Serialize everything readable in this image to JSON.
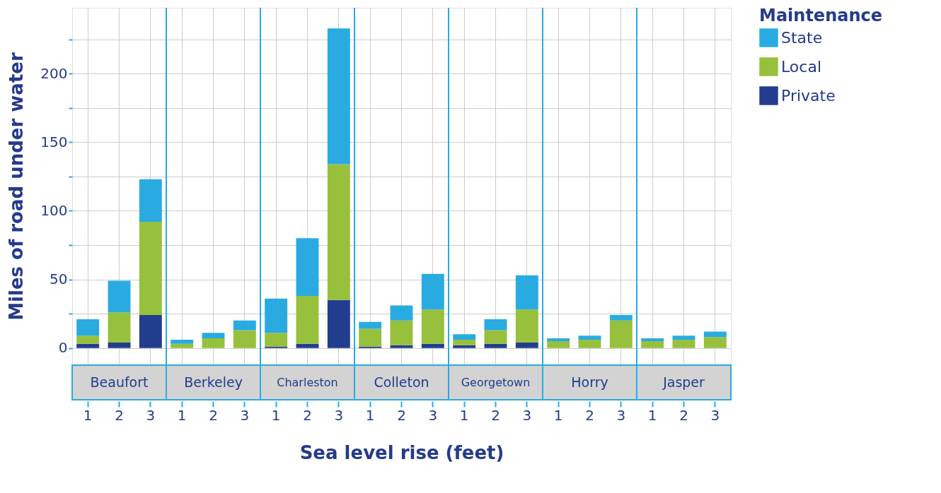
{
  "chart_data": {
    "type": "bar",
    "xlabel": "Sea level rise (feet)",
    "ylabel": "Miles of road under water",
    "legend_title": "Maintenance",
    "legend": "right",
    "annotations": [
      "Beaufort",
      "Berkeley",
      "Charleston",
      "Colleton",
      "Georgetown",
      "Horry",
      "Jasper"
    ],
    "categories": [
      "1",
      "2",
      "3",
      "1",
      "2",
      "3",
      "1",
      "2",
      "3",
      "1",
      "2",
      "3",
      "1",
      "2",
      "3",
      "1",
      "2",
      "3",
      "1",
      "2",
      "3"
    ],
    "stacked": true,
    "grid": true,
    "ylim": [
      -12,
      248
    ],
    "yticks": [
      0,
      {
        "value": 25,
        "label": null
      },
      50,
      {
        "value": 75,
        "label": null
      },
      100,
      {
        "value": 125,
        "label": null
      },
      150,
      {
        "value": 175,
        "label": null
      },
      200,
      {
        "value": 225,
        "label": null
      }
    ],
    "series": [
      {
        "name": "Private",
        "color": "#233d8e",
        "values": [
          3,
          4,
          24,
          null,
          null,
          null,
          1,
          3,
          35,
          1,
          2,
          3,
          2,
          3,
          4,
          null,
          null,
          null,
          null,
          null,
          null
        ]
      },
      {
        "name": "Local",
        "color": "#97c03d",
        "values": [
          6,
          22,
          68,
          3,
          7,
          13,
          10,
          35,
          99,
          13,
          18,
          25,
          4,
          10,
          24,
          5,
          6,
          20,
          5,
          6,
          8
        ]
      },
      {
        "name": "State",
        "color": "#29abe2",
        "values": [
          12,
          23,
          31,
          3,
          4,
          7,
          25,
          42,
          99,
          5,
          11,
          26,
          4,
          8,
          25,
          2,
          3,
          4,
          2,
          3,
          4
        ]
      }
    ]
  }
}
